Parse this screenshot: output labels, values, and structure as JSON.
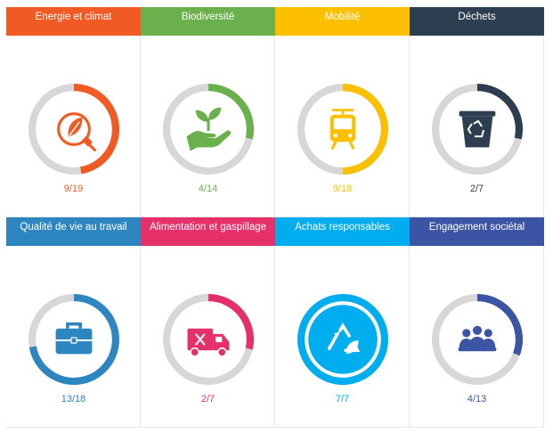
{
  "cards": [
    {
      "title": "Energie et climat",
      "score": "9/19",
      "value": 9,
      "total": 19,
      "color": "#f15a22",
      "icon": "energy-leaf-plug-icon"
    },
    {
      "title": "Biodiversité",
      "score": "4/14",
      "value": 4,
      "total": 14,
      "color": "#6ab04c",
      "icon": "hand-plant-icon"
    },
    {
      "title": "Mobilité",
      "score": "9/18",
      "value": 9,
      "total": 18,
      "color": "#fcc000",
      "icon": "tram-icon"
    },
    {
      "title": "Déchets",
      "score": "2/7",
      "value": 2,
      "total": 7,
      "color": "#2d3e50",
      "icon": "recycling-bin-icon"
    },
    {
      "title": "Qualité de vie au travail",
      "score": "13/18",
      "value": 13,
      "total": 18,
      "color": "#2e86c1",
      "icon": "briefcase-icon"
    },
    {
      "title": "Alimentation et gaspillage",
      "score": "2/7",
      "value": 2,
      "total": 7,
      "color": "#e5306a",
      "icon": "food-truck-icon"
    },
    {
      "title": "Achats responsables",
      "score": "7/7",
      "value": 7,
      "total": 7,
      "color": "#00adee",
      "icon": "recycle-leaf-icon"
    },
    {
      "title": "Engagement sociétal",
      "score": "4/13",
      "value": 4,
      "total": 13,
      "color": "#3b54a4",
      "icon": "community-group-icon"
    }
  ]
}
